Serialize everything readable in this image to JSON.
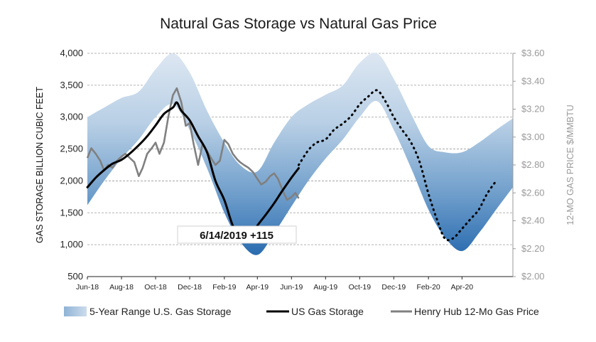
{
  "chart_data": {
    "type": "line",
    "title": "Natural Gas Storage vs Natural Gas Price",
    "ylabel": "GAS STORAGE BILLION CUBIC FEET",
    "y2label": "12-MO GAS PRICE $/MMBTU",
    "ylim": [
      500,
      4000
    ],
    "y2lim": [
      2.0,
      3.6
    ],
    "xlim": [
      "2018-06-01",
      "2020-07-01"
    ],
    "y_ticks": [
      "500",
      "1,000",
      "1,500",
      "2,000",
      "2,500",
      "3,000",
      "3,500",
      "4,000"
    ],
    "y2_ticks": [
      "$2.00",
      "$2.20",
      "$2.40",
      "$2.60",
      "$2.80",
      "$3.00",
      "$3.20",
      "$3.40",
      "$3.60"
    ],
    "x_ticks": [
      "Jun-18",
      "Aug-18",
      "Oct-18",
      "Dec-18",
      "Feb-19",
      "Apr-19",
      "Jun-19",
      "Aug-19",
      "Oct-19",
      "Dec-19",
      "Feb-20",
      "Apr-20"
    ],
    "grid": true,
    "legend_position": "bottom",
    "annotation": "6/14/2019 +115",
    "series": [
      {
        "name": "5-Year Range U.S. Gas Storage",
        "kind": "band",
        "x": [
          "2018-06-01",
          "2018-07-01",
          "2018-08-01",
          "2018-09-01",
          "2018-10-01",
          "2018-11-01",
          "2018-12-01",
          "2019-01-01",
          "2019-02-01",
          "2019-03-01",
          "2019-04-01",
          "2019-05-01",
          "2019-06-01",
          "2019-07-01",
          "2019-08-01",
          "2019-09-01",
          "2019-10-01",
          "2019-11-01",
          "2019-12-01",
          "2020-01-01",
          "2020-02-01",
          "2020-03-01",
          "2020-04-01",
          "2020-05-01",
          "2020-06-01",
          "2020-07-01"
        ],
        "low": [
          1620,
          2000,
          2350,
          2650,
          3000,
          3200,
          2800,
          2200,
          1500,
          1050,
          840,
          1180,
          1600,
          2000,
          2350,
          2650,
          3000,
          3250,
          2800,
          2200,
          1550,
          1120,
          900,
          1180,
          1550,
          1900
        ],
        "high": [
          3000,
          3150,
          3300,
          3400,
          3750,
          4000,
          3700,
          3100,
          2600,
          2250,
          2150,
          2600,
          3000,
          3200,
          3350,
          3500,
          3850,
          4000,
          3600,
          3050,
          2550,
          2450,
          2450,
          2600,
          2800,
          2980
        ]
      },
      {
        "name": "US Gas Storage",
        "kind": "line",
        "x": [
          "2018-06-01",
          "2018-06-16",
          "2018-07-01",
          "2018-07-16",
          "2018-08-01",
          "2018-08-16",
          "2018-09-01",
          "2018-09-16",
          "2018-10-01",
          "2018-10-16",
          "2018-11-01",
          "2018-11-08",
          "2018-11-16",
          "2018-12-01",
          "2018-12-16",
          "2019-01-01",
          "2019-01-16",
          "2019-02-01",
          "2019-02-16",
          "2019-03-01",
          "2019-03-16",
          "2019-04-01",
          "2019-04-16",
          "2019-05-01",
          "2019-05-16",
          "2019-06-01",
          "2019-06-14"
        ],
        "values": [
          1900,
          2050,
          2170,
          2270,
          2330,
          2430,
          2560,
          2700,
          2870,
          3050,
          3150,
          3230,
          3100,
          2950,
          2700,
          2450,
          2000,
          1700,
          1300,
          1150,
          1100,
          1300,
          1470,
          1650,
          1850,
          2050,
          2200
        ]
      },
      {
        "name": "US Gas Storage",
        "kind": "projection",
        "x": [
          "2019-06-14",
          "2019-07-01",
          "2019-07-16",
          "2019-08-01",
          "2019-08-16",
          "2019-09-01",
          "2019-09-16",
          "2019-10-01",
          "2019-10-16",
          "2019-11-01",
          "2019-11-16",
          "2019-12-01",
          "2019-12-16",
          "2020-01-01",
          "2020-01-16",
          "2020-02-01",
          "2020-02-16",
          "2020-03-01",
          "2020-03-16",
          "2020-04-01",
          "2020-04-16",
          "2020-05-01",
          "2020-05-16",
          "2020-06-01"
        ],
        "values": [
          2250,
          2480,
          2600,
          2650,
          2800,
          2900,
          3020,
          3200,
          3320,
          3420,
          3250,
          3000,
          2800,
          2600,
          2300,
          1800,
          1400,
          1100,
          1100,
          1250,
          1400,
          1550,
          1800,
          2000
        ]
      },
      {
        "name": "Henry Hub 12-Mo Gas Price",
        "kind": "line",
        "axis": "right",
        "x": [
          "2018-06-01",
          "2018-06-08",
          "2018-06-16",
          "2018-06-24",
          "2018-07-01",
          "2018-07-08",
          "2018-07-16",
          "2018-07-24",
          "2018-08-01",
          "2018-08-08",
          "2018-08-16",
          "2018-08-24",
          "2018-09-01",
          "2018-09-08",
          "2018-09-16",
          "2018-09-24",
          "2018-10-01",
          "2018-10-08",
          "2018-10-16",
          "2018-10-24",
          "2018-11-01",
          "2018-11-08",
          "2018-11-16",
          "2018-11-24",
          "2018-12-01",
          "2018-12-08",
          "2018-12-16",
          "2018-12-24",
          "2019-01-01",
          "2019-01-08",
          "2019-01-16",
          "2019-01-24",
          "2019-02-01",
          "2019-02-08",
          "2019-02-16",
          "2019-02-24",
          "2019-03-01",
          "2019-03-08",
          "2019-03-16",
          "2019-03-24",
          "2019-04-01",
          "2019-04-08",
          "2019-04-16",
          "2019-04-24",
          "2019-05-01",
          "2019-05-08",
          "2019-05-16",
          "2019-05-24",
          "2019-06-01",
          "2019-06-08",
          "2019-06-14"
        ],
        "values": [
          2.85,
          2.92,
          2.88,
          2.83,
          2.76,
          2.8,
          2.78,
          2.83,
          2.86,
          2.88,
          2.85,
          2.82,
          2.72,
          2.78,
          2.88,
          2.92,
          2.96,
          2.88,
          2.96,
          3.15,
          3.3,
          3.35,
          3.25,
          3.08,
          3.1,
          2.95,
          2.8,
          2.95,
          2.9,
          2.85,
          2.8,
          2.83,
          2.98,
          2.95,
          2.88,
          2.84,
          2.82,
          2.8,
          2.78,
          2.75,
          2.7,
          2.66,
          2.68,
          2.72,
          2.74,
          2.7,
          2.62,
          2.55,
          2.57,
          2.6,
          2.56
        ]
      }
    ]
  },
  "legend": [
    {
      "label": "5-Year Range U.S. Gas Storage",
      "swatch": "gradient"
    },
    {
      "label": "US Gas Storage",
      "swatch": "#000000"
    },
    {
      "label": "Henry Hub 12-Mo Gas Price",
      "swatch": "#808080"
    }
  ],
  "colors": {
    "band_light": "#cddcec",
    "band_mid": "#8fb3d6",
    "band_dark": "#2f74b5",
    "storage": "#000000",
    "price": "#808080",
    "grid": "#9a9a9a"
  }
}
